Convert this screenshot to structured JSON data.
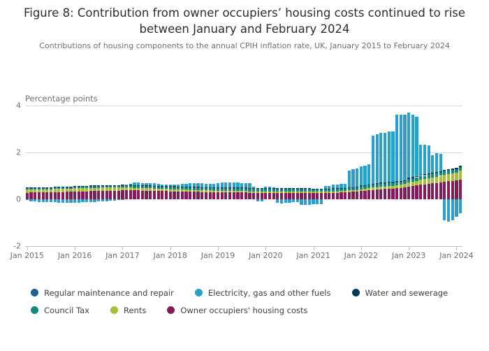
{
  "header": {
    "title": "Figure 8: Contribution from owner occupiers’ housing costs continued to rise between January and February 2024",
    "subtitle": "Contributions of housing components to the annual CPIH inflation rate, UK, January 2015 to February 2024"
  },
  "chart_data": {
    "type": "bar",
    "stacked": true,
    "title": "Figure 8: Contribution from owner occupiers’ housing costs continued to rise between January and February 2024",
    "subtitle": "Contributions of housing components to the annual CPIH inflation rate, UK, January 2015 to February 2024",
    "ylabel": "Percentage points",
    "ylim": [
      -2,
      4
    ],
    "y_ticks": [
      4,
      2,
      0,
      -2
    ],
    "grid": "horizontal",
    "x_start": "Jan 2015",
    "x_end": "Feb 2024",
    "x_ticks": [
      {
        "label": "Jan 2015",
        "month": 0
      },
      {
        "label": "Jan 2016",
        "month": 12
      },
      {
        "label": "Jan 2017",
        "month": 24
      },
      {
        "label": "Jan 2018",
        "month": 36
      },
      {
        "label": "Jan 2019",
        "month": 48
      },
      {
        "label": "Jan 2020",
        "month": 60
      },
      {
        "label": "Jan 2021",
        "month": 72
      },
      {
        "label": "Jan 2022",
        "month": 84
      },
      {
        "label": "Jan 2023",
        "month": 96
      },
      {
        "label": "Jan 2024",
        "month": 108
      }
    ],
    "legend_position": "bottom",
    "legend_rows": [
      [
        "Regular maintenance and repair",
        "Electricity, gas and other fuels",
        "Water and sewerage"
      ],
      [
        "Council Tax",
        "Rents",
        "Owner occupiers' housing costs"
      ]
    ],
    "series": [
      {
        "name": "Owner occupiers' housing costs",
        "color": "#871A5B",
        "values": [
          0.28,
          0.29,
          0.29,
          0.3,
          0.3,
          0.3,
          0.3,
          0.31,
          0.31,
          0.31,
          0.32,
          0.32,
          0.33,
          0.33,
          0.34,
          0.34,
          0.35,
          0.35,
          0.35,
          0.36,
          0.36,
          0.36,
          0.37,
          0.37,
          0.38,
          0.38,
          0.38,
          0.38,
          0.38,
          0.37,
          0.37,
          0.37,
          0.36,
          0.36,
          0.35,
          0.35,
          0.34,
          0.34,
          0.33,
          0.33,
          0.33,
          0.32,
          0.32,
          0.32,
          0.31,
          0.31,
          0.31,
          0.3,
          0.3,
          0.3,
          0.3,
          0.3,
          0.29,
          0.29,
          0.29,
          0.29,
          0.28,
          0.28,
          0.28,
          0.28,
          0.27,
          0.27,
          0.27,
          0.27,
          0.26,
          0.26,
          0.26,
          0.26,
          0.26,
          0.26,
          0.26,
          0.26,
          0.26,
          0.26,
          0.26,
          0.27,
          0.27,
          0.28,
          0.28,
          0.29,
          0.3,
          0.31,
          0.32,
          0.33,
          0.35,
          0.36,
          0.38,
          0.4,
          0.41,
          0.43,
          0.44,
          0.45,
          0.46,
          0.47,
          0.48,
          0.5,
          0.55,
          0.57,
          0.59,
          0.62,
          0.64,
          0.66,
          0.68,
          0.7,
          0.72,
          0.75,
          0.77,
          0.78,
          0.8,
          0.85
        ]
      },
      {
        "name": "Rents",
        "color": "#A8BD3A",
        "values": [
          0.13,
          0.13,
          0.13,
          0.13,
          0.13,
          0.13,
          0.13,
          0.13,
          0.13,
          0.13,
          0.13,
          0.13,
          0.14,
          0.14,
          0.14,
          0.14,
          0.14,
          0.14,
          0.14,
          0.14,
          0.14,
          0.14,
          0.14,
          0.14,
          0.12,
          0.12,
          0.12,
          0.11,
          0.11,
          0.11,
          0.1,
          0.1,
          0.1,
          0.09,
          0.09,
          0.09,
          0.08,
          0.08,
          0.08,
          0.08,
          0.08,
          0.08,
          0.07,
          0.07,
          0.07,
          0.07,
          0.07,
          0.07,
          0.06,
          0.06,
          0.06,
          0.06,
          0.06,
          0.06,
          0.06,
          0.06,
          0.06,
          0.06,
          0.06,
          0.06,
          0.07,
          0.07,
          0.07,
          0.07,
          0.07,
          0.07,
          0.07,
          0.07,
          0.07,
          0.07,
          0.07,
          0.07,
          0.06,
          0.06,
          0.06,
          0.06,
          0.06,
          0.06,
          0.06,
          0.06,
          0.06,
          0.07,
          0.07,
          0.07,
          0.08,
          0.08,
          0.09,
          0.1,
          0.1,
          0.11,
          0.11,
          0.12,
          0.12,
          0.13,
          0.14,
          0.15,
          0.18,
          0.19,
          0.2,
          0.22,
          0.23,
          0.24,
          0.25,
          0.26,
          0.28,
          0.3,
          0.31,
          0.32,
          0.33,
          0.36
        ]
      },
      {
        "name": "Council Tax",
        "color": "#118C7B",
        "values": [
          0.04,
          0.04,
          0.04,
          0.04,
          0.04,
          0.04,
          0.04,
          0.04,
          0.04,
          0.04,
          0.04,
          0.04,
          0.06,
          0.06,
          0.06,
          0.06,
          0.06,
          0.06,
          0.06,
          0.06,
          0.06,
          0.06,
          0.06,
          0.06,
          0.08,
          0.08,
          0.08,
          0.08,
          0.08,
          0.08,
          0.08,
          0.08,
          0.08,
          0.08,
          0.08,
          0.08,
          0.1,
          0.1,
          0.1,
          0.1,
          0.1,
          0.1,
          0.1,
          0.1,
          0.1,
          0.1,
          0.1,
          0.1,
          0.11,
          0.11,
          0.11,
          0.11,
          0.11,
          0.11,
          0.11,
          0.11,
          0.11,
          0.11,
          0.11,
          0.11,
          0.1,
          0.1,
          0.1,
          0.1,
          0.1,
          0.1,
          0.1,
          0.1,
          0.1,
          0.1,
          0.1,
          0.1,
          0.1,
          0.1,
          0.1,
          0.1,
          0.1,
          0.1,
          0.1,
          0.1,
          0.1,
          0.1,
          0.1,
          0.1,
          0.12,
          0.12,
          0.12,
          0.12,
          0.12,
          0.12,
          0.12,
          0.12,
          0.12,
          0.12,
          0.12,
          0.12,
          0.12,
          0.12,
          0.12,
          0.13,
          0.13,
          0.13,
          0.13,
          0.13,
          0.13,
          0.13,
          0.13,
          0.13,
          0.13,
          0.13
        ]
      },
      {
        "name": "Regular maintenance and repair",
        "color": "#206095",
        "values": [
          0.02,
          0.02,
          0.02,
          0.02,
          0.02,
          0.02,
          0.02,
          0.02,
          0.02,
          0.02,
          0.02,
          0.02,
          0.02,
          0.02,
          0.02,
          0.02,
          0.02,
          0.02,
          0.02,
          0.02,
          0.02,
          0.02,
          0.02,
          0.02,
          0.02,
          0.02,
          0.02,
          0.02,
          0.02,
          0.02,
          0.02,
          0.02,
          0.02,
          0.02,
          0.02,
          0.02,
          0.02,
          0.02,
          0.02,
          0.02,
          0.02,
          0.02,
          0.02,
          0.02,
          0.02,
          0.02,
          0.02,
          0.02,
          0.02,
          0.02,
          0.02,
          0.02,
          0.02,
          0.02,
          0.02,
          0.02,
          0.02,
          0.02,
          0.02,
          0.02,
          0.02,
          0.02,
          0.02,
          0.02,
          0.02,
          0.02,
          0.02,
          0.02,
          0.02,
          0.02,
          0.02,
          0.02,
          0.02,
          0.02,
          0.02,
          0.02,
          0.02,
          0.02,
          0.02,
          0.02,
          0.02,
          0.02,
          0.02,
          0.02,
          0.03,
          0.03,
          0.03,
          0.03,
          0.03,
          0.03,
          0.03,
          0.03,
          0.03,
          0.03,
          0.03,
          0.03,
          0.03,
          0.03,
          0.03,
          0.03,
          0.03,
          0.03,
          0.03,
          0.03,
          0.03,
          0.03,
          0.03,
          0.03,
          0.03,
          0.03
        ]
      },
      {
        "name": "Water and sewerage",
        "color": "#003C57",
        "values": [
          0.03,
          0.03,
          0.03,
          0.03,
          0.03,
          0.03,
          0.03,
          0.03,
          0.03,
          0.03,
          0.03,
          0.03,
          0.02,
          0.02,
          0.02,
          0.02,
          0.02,
          0.02,
          0.02,
          0.02,
          0.02,
          0.02,
          0.02,
          0.02,
          0.02,
          0.02,
          0.02,
          0.02,
          0.02,
          0.02,
          0.02,
          0.02,
          0.02,
          0.02,
          0.02,
          0.02,
          0.02,
          0.02,
          0.02,
          0.02,
          0.02,
          0.02,
          0.02,
          0.02,
          0.02,
          0.02,
          0.02,
          0.02,
          0.02,
          0.02,
          0.02,
          0.02,
          0.02,
          0.02,
          0.02,
          0.02,
          0.02,
          0.02,
          0.02,
          0.02,
          0.02,
          0.02,
          0.02,
          0.02,
          0.02,
          0.02,
          0.02,
          0.02,
          0.02,
          0.02,
          0.02,
          0.02,
          0.01,
          0.01,
          0.01,
          0.01,
          0.01,
          0.01,
          0.01,
          0.01,
          0.01,
          0.01,
          0.01,
          0.01,
          0.02,
          0.02,
          0.02,
          0.02,
          0.02,
          0.02,
          0.02,
          0.02,
          0.02,
          0.02,
          0.02,
          0.02,
          0.04,
          0.04,
          0.04,
          0.04,
          0.04,
          0.04,
          0.04,
          0.04,
          0.04,
          0.04,
          0.04,
          0.04,
          0.05,
          0.05
        ]
      },
      {
        "name": "Electricity, gas and other fuels",
        "color": "#27A0CC",
        "values": [
          -0.04,
          -0.1,
          -0.1,
          -0.12,
          -0.12,
          -0.12,
          -0.12,
          -0.12,
          -0.14,
          -0.14,
          -0.15,
          -0.15,
          -0.14,
          -0.14,
          -0.13,
          -0.12,
          -0.12,
          -0.12,
          -0.1,
          -0.1,
          -0.08,
          -0.06,
          -0.05,
          -0.04,
          -0.02,
          0.02,
          0.05,
          0.1,
          0.1,
          0.1,
          0.1,
          0.1,
          0.1,
          0.08,
          0.08,
          0.08,
          0.08,
          0.08,
          0.08,
          0.1,
          0.12,
          0.15,
          0.15,
          0.15,
          0.18,
          0.15,
          0.15,
          0.15,
          0.18,
          0.2,
          0.2,
          0.22,
          0.22,
          0.22,
          0.2,
          0.2,
          0.2,
          0.05,
          -0.08,
          -0.08,
          0.05,
          0.05,
          0.03,
          -0.15,
          -0.18,
          -0.15,
          -0.15,
          -0.12,
          -0.12,
          -0.25,
          -0.25,
          -0.25,
          -0.22,
          -0.22,
          -0.2,
          0.1,
          0.12,
          0.15,
          0.15,
          0.18,
          0.18,
          0.7,
          0.75,
          0.78,
          0.8,
          0.82,
          0.85,
          2.05,
          2.1,
          2.12,
          2.12,
          2.15,
          2.15,
          2.85,
          2.82,
          2.8,
          2.78,
          2.65,
          2.55,
          1.3,
          1.25,
          1.2,
          0.75,
          0.8,
          0.75,
          -0.9,
          -0.95,
          -0.9,
          -0.75,
          -0.6
        ]
      }
    ]
  }
}
